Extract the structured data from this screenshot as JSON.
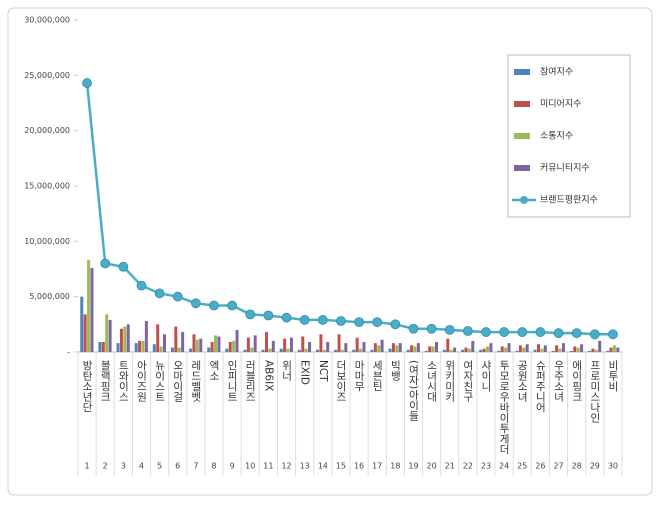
{
  "chart_data": {
    "type": "bar-line",
    "categories": [
      "방탄소년단",
      "블랙핑크",
      "트와이스",
      "아이즈원",
      "뉴이스트",
      "오마이걸",
      "레드벨벳",
      "엑소",
      "인피니트",
      "러블리즈",
      "AB6IX",
      "위너",
      "EXID",
      "NCT",
      "더보이즈",
      "마마무",
      "세븐틴",
      "빅뱅",
      "(여자)아이들",
      "소녀시대",
      "위키미키",
      "여자친구",
      "샤이니",
      "투모로우바이투게더",
      "공원소녀",
      "슈퍼주니어",
      "우주소녀",
      "에이핑크",
      "프로미스나인",
      "비투비"
    ],
    "ranks": [
      1,
      2,
      3,
      4,
      5,
      6,
      7,
      8,
      9,
      10,
      11,
      12,
      13,
      14,
      15,
      16,
      17,
      18,
      19,
      20,
      21,
      22,
      23,
      24,
      25,
      26,
      27,
      28,
      29,
      30
    ],
    "series": [
      {
        "name": "참여지수",
        "color": "#4f81bd",
        "values": [
          5000000,
          900000,
          800000,
          800000,
          700000,
          400000,
          300000,
          400000,
          300000,
          200000,
          200000,
          300000,
          200000,
          200000,
          200000,
          200000,
          200000,
          300000,
          200000,
          100000,
          200000,
          200000,
          200000,
          100000,
          100000,
          200000,
          100000,
          100000,
          100000,
          100000
        ]
      },
      {
        "name": "미디어지수",
        "color": "#c0504d",
        "values": [
          3400000,
          900000,
          2100000,
          1000000,
          2500000,
          2300000,
          1600000,
          900000,
          900000,
          1300000,
          1800000,
          1200000,
          1400000,
          1600000,
          1600000,
          1300000,
          800000,
          800000,
          600000,
          500000,
          1200000,
          400000,
          300000,
          500000,
          600000,
          700000,
          600000,
          500000,
          300000,
          400000
        ]
      },
      {
        "name": "소통지수",
        "color": "#9bbb59",
        "values": [
          8300000,
          3400000,
          2300000,
          1000000,
          500000,
          400000,
          1100000,
          1500000,
          1000000,
          400000,
          300000,
          300000,
          300000,
          200000,
          200000,
          300000,
          600000,
          600000,
          500000,
          500000,
          200000,
          300000,
          500000,
          400000,
          400000,
          300000,
          300000,
          400000,
          200000,
          600000
        ]
      },
      {
        "name": "커뮤니티지수",
        "color": "#8064a2",
        "values": [
          7600000,
          2900000,
          2500000,
          2800000,
          1600000,
          1800000,
          1200000,
          1400000,
          2000000,
          1500000,
          1000000,
          1300000,
          900000,
          900000,
          800000,
          900000,
          1100000,
          800000,
          800000,
          900000,
          400000,
          1000000,
          800000,
          800000,
          700000,
          600000,
          800000,
          700000,
          1000000,
          400000
        ]
      },
      {
        "name": "브랜드평판지수",
        "type": "line",
        "color": "#4bacc6",
        "values": [
          24300000,
          8000000,
          7700000,
          6000000,
          5300000,
          5000000,
          4400000,
          4200000,
          4200000,
          3400000,
          3300000,
          3100000,
          2900000,
          2900000,
          2800000,
          2700000,
          2700000,
          2500000,
          2100000,
          2100000,
          2000000,
          1900000,
          1800000,
          1800000,
          1800000,
          1800000,
          1700000,
          1700000,
          1600000,
          1600000
        ]
      }
    ],
    "ylim": [
      0,
      30000000
    ],
    "yticks": [
      {
        "value": 0,
        "label": "-"
      },
      {
        "value": 5000000,
        "label": "5,000,000"
      },
      {
        "value": 10000000,
        "label": "10,000,000"
      },
      {
        "value": 15000000,
        "label": "15,000,000"
      },
      {
        "value": 20000000,
        "label": "20,000,000"
      },
      {
        "value": 25000000,
        "label": "25,000,000"
      },
      {
        "value": 30000000,
        "label": "30,000,000"
      }
    ],
    "legend": "right"
  }
}
